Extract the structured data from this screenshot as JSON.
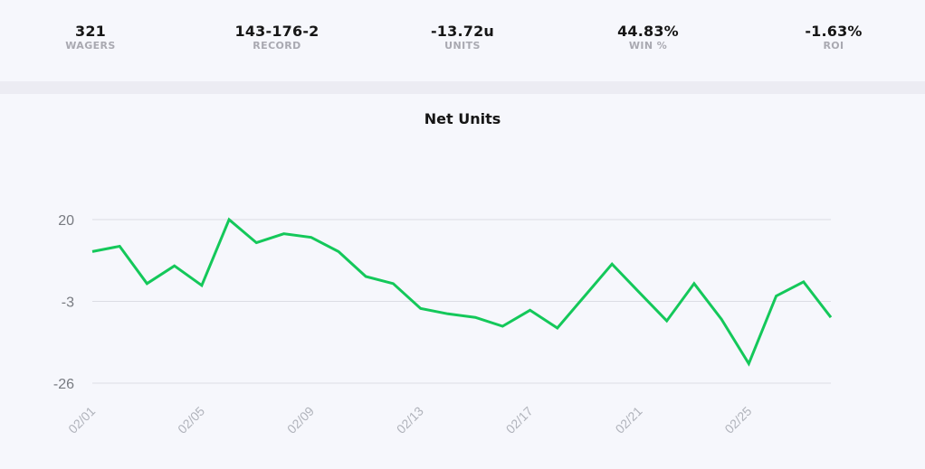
{
  "stats": [
    {
      "value": "321",
      "label": "WAGERS"
    },
    {
      "value": "143-176-2",
      "label": "RECORD"
    },
    {
      "value": "-13.72u",
      "label": "UNITS"
    },
    {
      "value": "44.83%",
      "label": "WIN %"
    },
    {
      "value": "-1.63%",
      "label": "ROI"
    }
  ],
  "colors": {
    "line": "#14c85a",
    "grid": "#dcdde4",
    "tick_text": "#777a80",
    "x_tick_text": "#b0b3bb"
  },
  "chart_data": {
    "type": "line",
    "title": "Net Units",
    "xlabel": "",
    "ylabel": "",
    "y_ticks": [
      "20",
      "-3",
      "-26"
    ],
    "y_tick_values": [
      20,
      -3,
      -26
    ],
    "ylim": [
      -26,
      20
    ],
    "grid": true,
    "x_tick_labels": [
      "02/01",
      "02/05",
      "02/09",
      "02/13",
      "02/17",
      "02/21",
      "02/25"
    ],
    "x": [
      "02/01",
      "02/02",
      "02/03",
      "02/04",
      "02/05",
      "02/06",
      "02/07",
      "02/08",
      "02/09",
      "02/10",
      "02/11",
      "02/12",
      "02/13",
      "02/14",
      "02/15",
      "02/16",
      "02/17",
      "02/18",
      "02/19",
      "02/20",
      "02/21",
      "02/22",
      "02/23",
      "02/24",
      "02/25",
      "02/26",
      "02/27",
      "02/28"
    ],
    "series": [
      {
        "values": [
          11.0,
          12.5,
          2.0,
          7.0,
          1.5,
          20.0,
          13.5,
          16.0,
          15.0,
          11.0,
          4.0,
          2.0,
          -5.0,
          -6.5,
          -7.5,
          -10.0,
          -5.5,
          -10.5,
          -1.5,
          7.5,
          -0.5,
          -8.5,
          2.0,
          -8.0,
          -20.5,
          -1.5,
          2.5,
          -7.5
        ]
      }
    ]
  }
}
